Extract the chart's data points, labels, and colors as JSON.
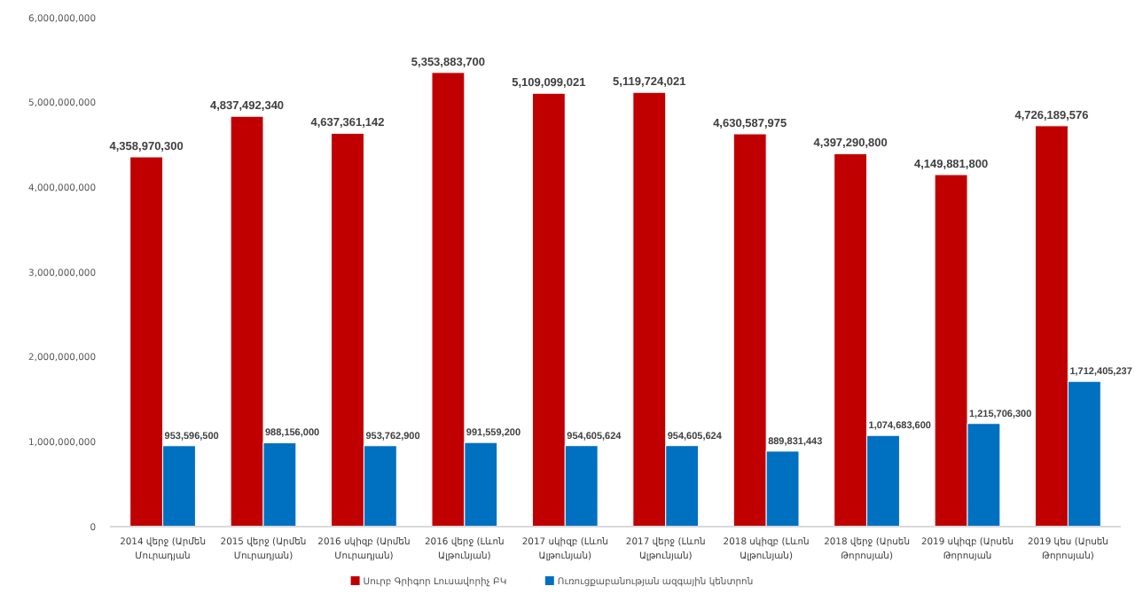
{
  "chart_data": {
    "type": "bar",
    "categories": [
      "2014 վերջ (Արմեն Մուրադյան",
      "2015 վերջ (Արմեն Մուրադյան)",
      "2016 սկիզբ (Արմեն Մուրադյան)",
      "2016 վերջ (Լևոն Ալթունյան)",
      "2017 սկիզբ (Լևոն Ալթունյան)",
      "2017 վերջ (Լևոն Ալթունյան)",
      "2018 սկիզբ (Լևոն Ալթունյան)",
      "2018 վերջ (Արսեն Թորոսյան)",
      "2019 սկիզբ (Արսեն Թորոսյան",
      "2019 կես (Արսեն Թորոսյան)"
    ],
    "series": [
      {
        "name": "Սուրբ Գրիգոր Լուսավորիչ ԲԿ",
        "color": "#c00000",
        "values": [
          4358970300,
          4837492340,
          4637361142,
          5353883700,
          5109099021,
          5119724021,
          4630587975,
          4397290800,
          4149881800,
          4726189576
        ],
        "value_labels": [
          "4,358,970,300",
          "4,837,492,340",
          "4,637,361,142",
          "5,353,883,700",
          "5,109,099,021",
          "5,119,724,021",
          "4,630,587,975",
          "4,397,290,800",
          "4,149,881,800",
          "4,726,189,576"
        ]
      },
      {
        "name": "Ուռուցքաբանության ազգային կենտրոն",
        "color": "#0070c0",
        "values": [
          953596500,
          988156000,
          953762900,
          991559200,
          954605624,
          954605624,
          889831443,
          1074683600,
          1215706300,
          1712405237
        ],
        "value_labels": [
          "953,596,500",
          "988,156,000",
          "953,762,900",
          "991,559,200",
          "954,605,624",
          "954,605,624",
          "889,831,443",
          "1,074,683,600",
          "1,215,706,300",
          "1,712,405,237"
        ]
      }
    ],
    "ylim": [
      0,
      6000000000
    ],
    "yticks": [
      {
        "value": 0,
        "label": "0"
      },
      {
        "value": 1000000000,
        "label": "1,000,000,000"
      },
      {
        "value": 2000000000,
        "label": "2,000,000,000"
      },
      {
        "value": 3000000000,
        "label": "3,000,000,000"
      },
      {
        "value": 4000000000,
        "label": "4,000,000,000"
      },
      {
        "value": 5000000000,
        "label": "5,000,000,000"
      },
      {
        "value": 6000000000,
        "label": "6,000,000,000"
      }
    ],
    "legend": "bottom",
    "grid": false
  }
}
